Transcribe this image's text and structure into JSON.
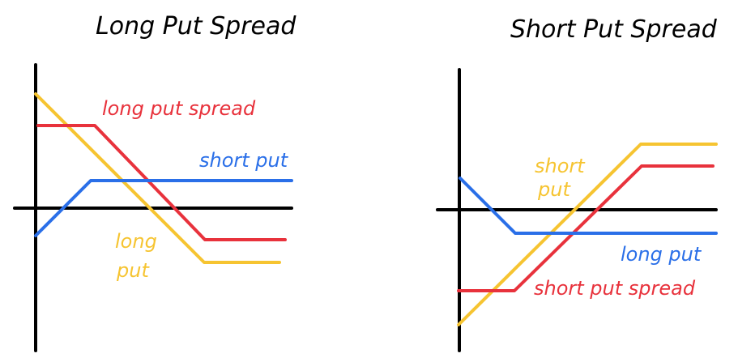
{
  "colors": {
    "axis": "#000000",
    "red": "#e8323c",
    "blue": "#2a6fe8",
    "yellow": "#f6c431"
  },
  "long_put_spread": {
    "title": "Long Put Spread",
    "labels": {
      "long_put_spread": "long put spread",
      "short_put": "short put",
      "long_put_line1": "long",
      "long_put_line2": "put"
    }
  },
  "short_put_spread": {
    "title": "Short Put Spread",
    "labels": {
      "short_put_line1": "short",
      "short_put_line2": "put",
      "long_put": "long put",
      "short_put_spread": "short put spread"
    }
  }
}
